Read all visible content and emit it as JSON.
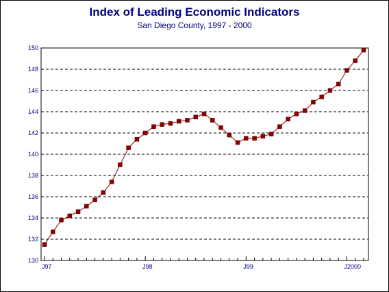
{
  "chart_data": {
    "type": "line",
    "title": "Index of Leading Economic Indicators",
    "subtitle": "San Diego County, 1997 - 2000",
    "xlabel": "",
    "ylabel": "",
    "ylim": [
      130,
      150
    ],
    "yticks": [
      130,
      132,
      134,
      136,
      138,
      140,
      142,
      144,
      146,
      148,
      150
    ],
    "xticklabels": [
      {
        "label": "J97",
        "index": 0
      },
      {
        "label": "J98",
        "index": 12
      },
      {
        "label": "J99",
        "index": 24
      },
      {
        "label": "J2000",
        "index": 36
      }
    ],
    "grid": true,
    "series": [
      {
        "name": "",
        "color": "#8b0000",
        "values": [
          131.5,
          132.7,
          133.8,
          134.2,
          134.6,
          135.1,
          135.7,
          136.4,
          137.4,
          139.0,
          140.6,
          141.4,
          142.0,
          142.6,
          142.8,
          142.9,
          143.1,
          143.2,
          143.5,
          143.8,
          143.2,
          142.5,
          141.8,
          141.1,
          141.5,
          141.5,
          141.7,
          141.9,
          142.6,
          143.3,
          143.8,
          144.1,
          144.9,
          145.4,
          146.0,
          146.6,
          147.9,
          148.8,
          149.8
        ]
      }
    ]
  }
}
